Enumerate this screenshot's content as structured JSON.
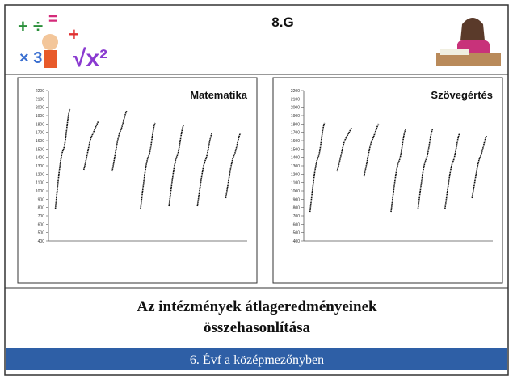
{
  "header": {
    "class_label": "8.G"
  },
  "charts": [
    {
      "title": "Matematika",
      "ylim": [
        400,
        2200
      ],
      "yticks": [
        400,
        500,
        600,
        700,
        800,
        900,
        1000,
        1100,
        1200,
        1300,
        1400,
        1500,
        1600,
        1700,
        1800,
        1900,
        2000,
        2100,
        2200
      ],
      "ranges": [
        {
          "min": 787,
          "max": 1977
        },
        {
          "min": 1252,
          "max": 1832
        },
        {
          "min": 1232,
          "max": 1958
        },
        {
          "min": 787,
          "max": 1813
        },
        {
          "min": 816,
          "max": 1784
        },
        {
          "min": 816,
          "max": 1687
        },
        {
          "min": 913,
          "max": 1687
        }
      ]
    },
    {
      "title": "Szövegértés",
      "ylim": [
        400,
        2200
      ],
      "yticks": [
        400,
        500,
        600,
        700,
        800,
        900,
        1000,
        1100,
        1200,
        1300,
        1400,
        1500,
        1600,
        1700,
        1800,
        1900,
        2000,
        2100,
        2200
      ],
      "ranges": [
        {
          "min": 748,
          "max": 1813
        },
        {
          "min": 1232,
          "max": 1755
        },
        {
          "min": 1174,
          "max": 1803
        },
        {
          "min": 748,
          "max": 1735
        },
        {
          "min": 787,
          "max": 1735
        },
        {
          "min": 787,
          "max": 1687
        },
        {
          "min": 913,
          "max": 1658
        }
      ]
    }
  ],
  "footer": {
    "title_lines": [
      "Az intézmények átlageredményeinek",
      "összehasonlítása"
    ],
    "banner": "6. Évf a középmezőnyben"
  }
}
